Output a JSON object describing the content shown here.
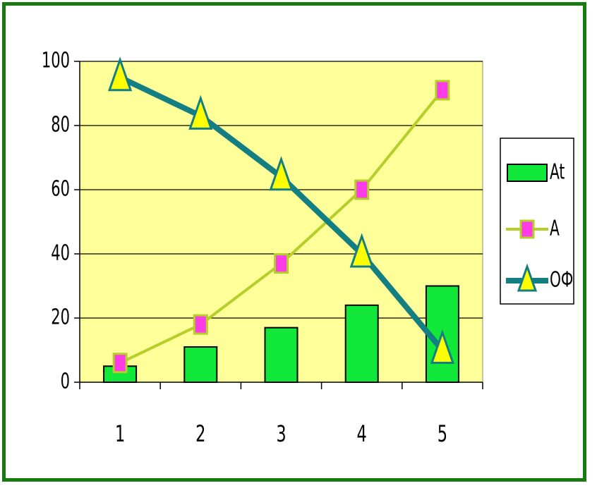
{
  "chart_data": {
    "type": "bar",
    "categories": [
      "1",
      "2",
      "3",
      "4",
      "5"
    ],
    "ylim": [
      0,
      100
    ],
    "yticks": [
      0,
      20,
      40,
      60,
      80,
      100
    ],
    "grid": true,
    "legend_position": "right",
    "series": [
      {
        "name": "At",
        "type": "bar",
        "values": [
          5,
          11,
          17,
          24,
          30
        ],
        "color": "#11e83a"
      },
      {
        "name": "A",
        "type": "line",
        "marker": "square",
        "values": [
          6,
          18,
          37,
          60,
          91
        ],
        "color": "#b5cf2a",
        "marker_color": "#ff3be8"
      },
      {
        "name": "ОФ",
        "type": "line",
        "marker": "triangle",
        "values": [
          95,
          83,
          64,
          40,
          10
        ],
        "color": "#147f83",
        "marker_color": "#ffff00"
      }
    ],
    "plot_background": "#ffff99"
  }
}
